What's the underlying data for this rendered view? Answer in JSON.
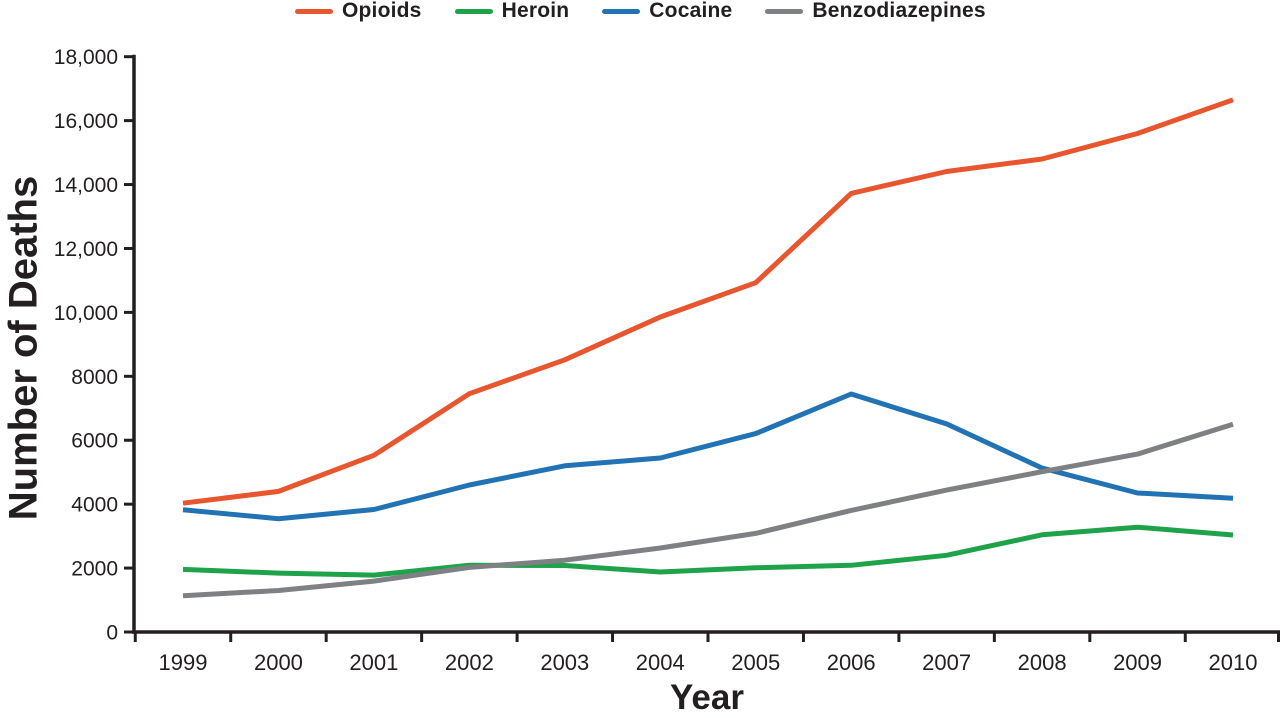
{
  "chart_data": {
    "type": "line",
    "title": "",
    "xlabel": "Year",
    "ylabel": "Number of Deaths",
    "x": [
      1999,
      2000,
      2001,
      2002,
      2003,
      2004,
      2005,
      2006,
      2007,
      2008,
      2009,
      2010
    ],
    "ylim": [
      0,
      18000
    ],
    "grid": false,
    "legend_position": "top",
    "ink_color": "#231F20",
    "yticks": [
      {
        "value": 0,
        "label": "0"
      },
      {
        "value": 2000,
        "label": "2000"
      },
      {
        "value": 4000,
        "label": "4000"
      },
      {
        "value": 6000,
        "label": "6000"
      },
      {
        "value": 8000,
        "label": "8000"
      },
      {
        "value": 10000,
        "label": "10,000"
      },
      {
        "value": 12000,
        "label": "12,000"
      },
      {
        "value": 14000,
        "label": "14,000"
      },
      {
        "value": 16000,
        "label": "16,000"
      },
      {
        "value": 18000,
        "label": "18,000"
      }
    ],
    "series": [
      {
        "name": "Opioids",
        "color": "#E8562F",
        "values": [
          4030,
          4400,
          5528,
          7456,
          8517,
          9857,
          10928,
          13723,
          14408,
          14800,
          15597,
          16651
        ]
      },
      {
        "name": "Heroin",
        "color": "#1EA24A",
        "values": [
          1960,
          1842,
          1779,
          2089,
          2080,
          1878,
          2009,
          2088,
          2399,
          3041,
          3278,
          3036
        ]
      },
      {
        "name": "Cocaine",
        "color": "#2173B4",
        "values": [
          3822,
          3544,
          3833,
          4599,
          5199,
          5443,
          6208,
          7448,
          6512,
          5129,
          4350,
          4183
        ]
      },
      {
        "name": "Benzodiazepines",
        "color": "#7E8083",
        "values": [
          1135,
          1298,
          1594,
          2022,
          2248,
          2627,
          3084,
          3805,
          4441,
          5017,
          5567,
          6497
        ]
      }
    ]
  }
}
